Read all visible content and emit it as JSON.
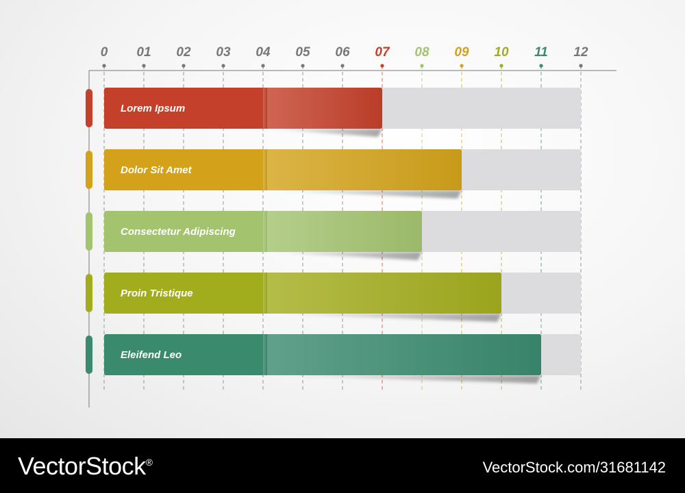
{
  "chart_data": {
    "type": "bar",
    "orientation": "horizontal",
    "title": "",
    "xlabel": "",
    "ylabel": "",
    "xlim": [
      0,
      12
    ],
    "ticks": [
      "0",
      "01",
      "02",
      "03",
      "04",
      "05",
      "06",
      "07",
      "08",
      "09",
      "10",
      "11",
      "12"
    ],
    "grid": true,
    "categories": [
      "Lorem Ipsum",
      "Dolor Sit Amet",
      "Consectetur Adipiscing",
      "Proin Tristique",
      "Eleifend Leo"
    ],
    "values": [
      7,
      9,
      8,
      10,
      11
    ],
    "colors": [
      "#c4402a",
      "#d3a21a",
      "#a3c36f",
      "#a2ad1d",
      "#3a8a6e"
    ]
  },
  "watermark": {
    "brand": "VectorStock",
    "registered": "®",
    "id": "VectorStock.com/31681142"
  }
}
